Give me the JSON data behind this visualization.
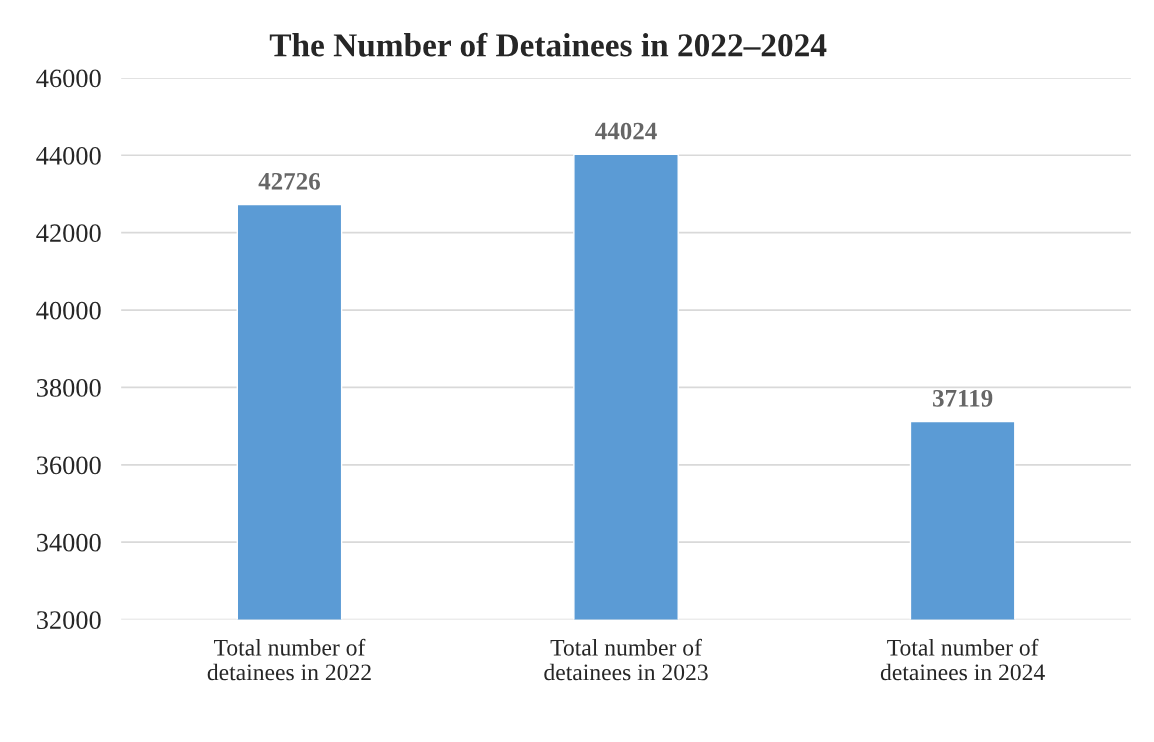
{
  "chart_data": {
    "type": "bar",
    "title": "The Number of Detainees in 2022–2024",
    "categories": [
      "Total number of\ndetainees in 2022",
      "Total number of\ndetainees in 2023",
      "Total number of\ndetainees in 2024"
    ],
    "values": [
      42726,
      44024,
      37119
    ],
    "color": "#5b9bd5",
    "ylim": [
      32000,
      46000
    ],
    "yticks": [
      32000,
      34000,
      36000,
      38000,
      40000,
      42000,
      44000,
      46000
    ],
    "grid": "y",
    "data_labels": true
  }
}
